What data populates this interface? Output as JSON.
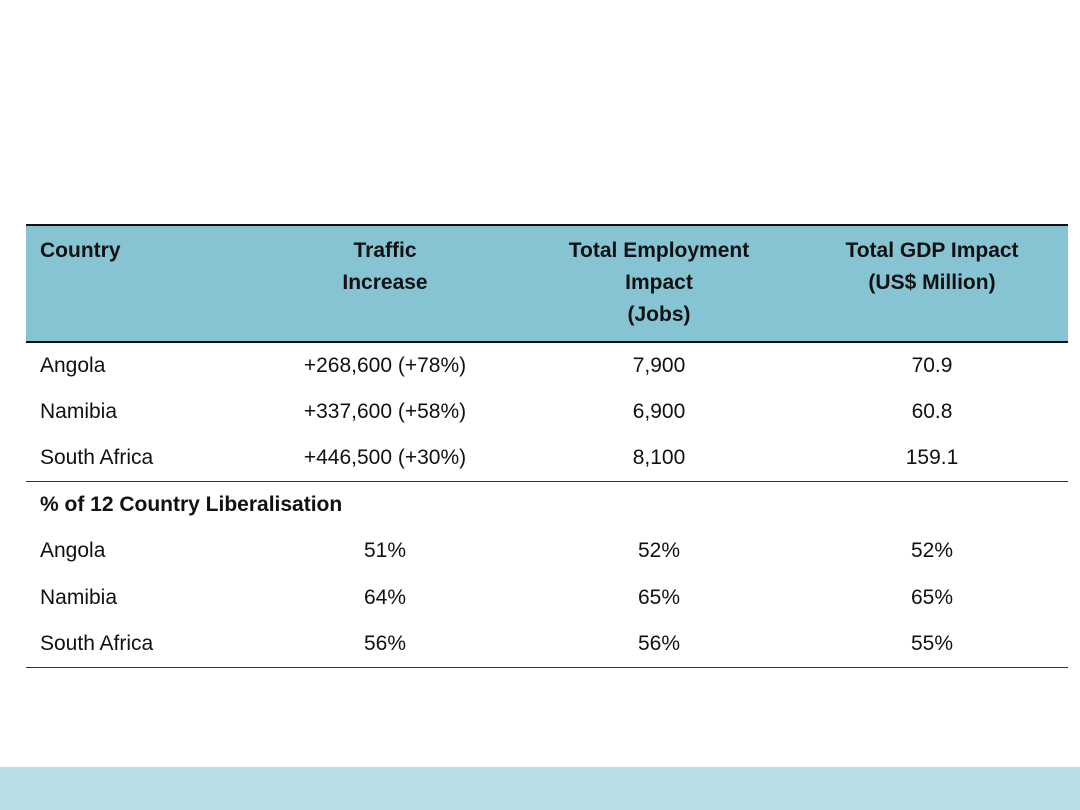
{
  "table": {
    "headers": [
      "Country",
      "Traffic\nIncrease",
      "Total Employment\nImpact\n(Jobs)",
      "Total GDP Impact\n(US$ Million)"
    ],
    "rows": [
      [
        "Angola",
        "+268,600 (+78%)",
        "7,900",
        "70.9"
      ],
      [
        "Namibia",
        "+337,600 (+58%)",
        "6,900",
        "60.8"
      ],
      [
        "South Africa",
        "+446,500 (+30%)",
        "8,100",
        "159.1"
      ]
    ],
    "section_label": "% of 12 Country Liberalisation",
    "section_rows": [
      [
        "Angola",
        "51%",
        "52%",
        "52%"
      ],
      [
        "Namibia",
        "64%",
        "65%",
        "65%"
      ],
      [
        "South Africa",
        "56%",
        "56%",
        "55%"
      ]
    ]
  },
  "colors": {
    "header_fill": "#86c4d4",
    "footer_band": "#b7dde7"
  }
}
